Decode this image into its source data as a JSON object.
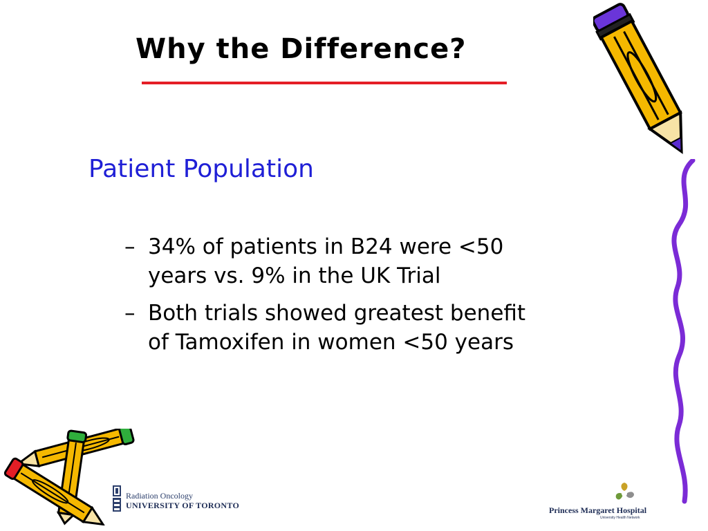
{
  "slide": {
    "title": "Why the Difference?",
    "subtitle": "Patient Population",
    "bullets": [
      {
        "marker": "–",
        "line1": "34% of patients in B24 were <50",
        "line2": "years vs. 9% in the UK Trial"
      },
      {
        "marker": "–",
        "line1": "Both trials showed greatest benefit",
        "line2": "of Tamoxifen in women <50 years"
      }
    ]
  },
  "logos": {
    "uoft": {
      "line1": "Radiation Oncology",
      "line2": "UNIVERSITY OF TORONTO"
    },
    "pmh": {
      "name": "Princess Margaret Hospital",
      "sub": "University Health Network"
    }
  },
  "colors": {
    "title": "#000000",
    "title_rule": "#e41e26",
    "subtitle": "#1f1fd6",
    "body": "#000000",
    "pencil_yellow": "#f5b800",
    "squiggle": "#7b2bd6"
  },
  "icons": {
    "top_right": "pencil-icon",
    "bottom_left": "pencils-icon",
    "right_edge": "squiggle-line-icon"
  }
}
